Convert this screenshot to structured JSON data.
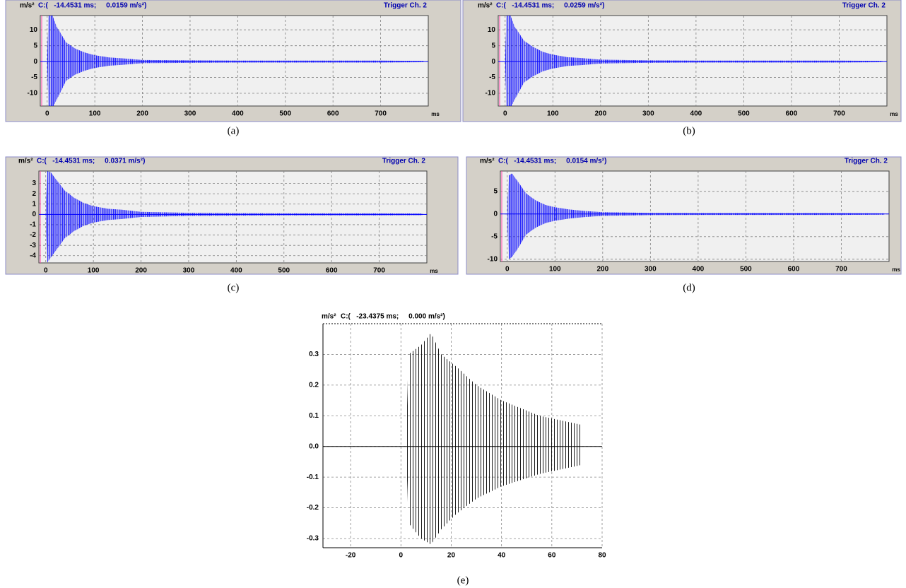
{
  "chart_data": [
    {
      "type": "signal",
      "y_unit": "m/s²",
      "cursor": "C:(   -14.4531 ms;     0.0159 m/s²)",
      "trigger": "Trigger Ch. 2",
      "caption": "(a)",
      "x_label": "ms",
      "color": "#0000ff",
      "xlim": [
        -14.45,
        800
      ],
      "xticks": [
        0,
        100,
        200,
        300,
        400,
        500,
        600,
        700
      ],
      "ylim": [
        -14,
        14.5
      ],
      "yticks": [
        -10,
        -5,
        0,
        5,
        10
      ],
      "envelope": {
        "x": [
          0,
          3,
          10,
          20,
          40,
          60,
          80,
          100,
          130,
          160,
          200,
          300,
          400,
          500,
          600,
          700,
          790
        ],
        "upper": [
          0,
          15,
          15,
          11,
          6,
          4,
          2.8,
          2,
          1.3,
          1,
          0.5,
          0.4,
          0.3,
          0.3,
          0.3,
          0.3,
          0.2
        ],
        "lower": [
          0,
          -15,
          -15,
          -12,
          -6,
          -4,
          -2.8,
          -2,
          -1.3,
          -1,
          -0.5,
          -0.4,
          -0.3,
          -0.3,
          -0.3,
          -0.3,
          -0.2
        ]
      }
    },
    {
      "type": "signal",
      "y_unit": "m/s²",
      "cursor": "C:(   -14.4531 ms;     0.0259 m/s²)",
      "trigger": "Trigger Ch. 2",
      "caption": "(b)",
      "x_label": "ms",
      "color": "#0000ff",
      "xlim": [
        -14.45,
        800
      ],
      "xticks": [
        0,
        100,
        200,
        300,
        400,
        500,
        600,
        700
      ],
      "ylim": [
        -14,
        14.5
      ],
      "yticks": [
        -10,
        -5,
        0,
        5,
        10
      ],
      "envelope": {
        "x": [
          0,
          3,
          10,
          20,
          40,
          60,
          80,
          100,
          130,
          160,
          200,
          300,
          400,
          500,
          600,
          700,
          790
        ],
        "upper": [
          0,
          15,
          15,
          11,
          6.5,
          4.5,
          3,
          2.2,
          1.4,
          1.1,
          0.6,
          0.4,
          0.3,
          0.3,
          0.3,
          0.3,
          0.2
        ],
        "lower": [
          0,
          -15,
          -15,
          -12,
          -6.5,
          -4.5,
          -3,
          -2.2,
          -1.4,
          -1.1,
          -0.6,
          -0.4,
          -0.3,
          -0.3,
          -0.3,
          -0.3,
          -0.2
        ]
      }
    },
    {
      "type": "signal",
      "y_unit": "m/s²",
      "cursor": "C:(   -14.4531 ms;     0.0371 m/s²)",
      "trigger": "Trigger Ch. 2",
      "caption": "(c)",
      "x_label": "ms",
      "color": "#0000ff",
      "xlim": [
        -14.45,
        800
      ],
      "xticks": [
        0,
        100,
        200,
        300,
        400,
        500,
        600,
        700
      ],
      "ylim": [
        -4.7,
        4.2
      ],
      "yticks": [
        -4,
        -3,
        -2,
        -1,
        0,
        1,
        2,
        3
      ],
      "envelope": {
        "x": [
          0,
          3,
          10,
          20,
          40,
          60,
          80,
          100,
          130,
          160,
          200,
          300,
          400,
          500,
          600,
          700,
          790
        ],
        "upper": [
          0,
          4.2,
          4.1,
          3.5,
          2.3,
          1.6,
          1.1,
          0.8,
          0.55,
          0.45,
          0.25,
          0.15,
          0.12,
          0.1,
          0.1,
          0.1,
          0.08
        ],
        "lower": [
          0,
          -4.7,
          -4.2,
          -3.6,
          -2.3,
          -1.6,
          -1.1,
          -0.8,
          -0.55,
          -0.45,
          -0.25,
          -0.15,
          -0.12,
          -0.1,
          -0.1,
          -0.1,
          -0.08
        ]
      }
    },
    {
      "type": "signal",
      "y_unit": "m/s²",
      "cursor": "C:(   -14.4531 ms;     0.0154 m/s²)",
      "trigger": "Trigger Ch. 2",
      "caption": "(d)",
      "x_label": "ms",
      "color": "#0000ff",
      "xlim": [
        -14.45,
        800
      ],
      "xticks": [
        0,
        100,
        200,
        300,
        400,
        500,
        600,
        700
      ],
      "ylim": [
        -10.5,
        9.5
      ],
      "yticks": [
        -10,
        -5,
        0,
        5
      ],
      "envelope": {
        "x": [
          0,
          3,
          10,
          20,
          40,
          60,
          80,
          100,
          130,
          160,
          200,
          300,
          400,
          500,
          600,
          700,
          790
        ],
        "upper": [
          0,
          8.5,
          9,
          7.5,
          4.5,
          3,
          2,
          1.5,
          1,
          0.7,
          0.4,
          0.25,
          0.2,
          0.2,
          0.2,
          0.2,
          0.15
        ],
        "lower": [
          0,
          -10,
          -9.5,
          -8,
          -4.5,
          -3,
          -2,
          -1.5,
          -1,
          -0.7,
          -0.4,
          -0.25,
          -0.2,
          -0.2,
          -0.2,
          -0.2,
          -0.15
        ]
      }
    },
    {
      "type": "signal",
      "y_unit": "m/s²",
      "cursor": "C:(   -23.4375 ms;     0.000 m/s²)",
      "caption": "(e)",
      "color": "#000000",
      "xlim": [
        -31,
        80
      ],
      "xticks": [
        -20,
        0,
        20,
        40,
        60,
        80
      ],
      "ylim": [
        -0.33,
        0.4
      ],
      "yticks": [
        -0.3,
        -0.2,
        -0.1,
        {
          "value": 0,
          "label": "0.0"
        },
        0.1,
        0.2,
        0.3
      ],
      "envelope": {
        "x": [
          2,
          3,
          8,
          12,
          16,
          22,
          30,
          40,
          55,
          72
        ],
        "upper": [
          0,
          0.3,
          0.33,
          0.37,
          0.3,
          0.26,
          0.2,
          0.15,
          0.1,
          0.07
        ],
        "lower": [
          0,
          -0.25,
          -0.3,
          -0.32,
          -0.27,
          -0.22,
          -0.17,
          -0.13,
          -0.09,
          -0.06
        ]
      }
    }
  ]
}
